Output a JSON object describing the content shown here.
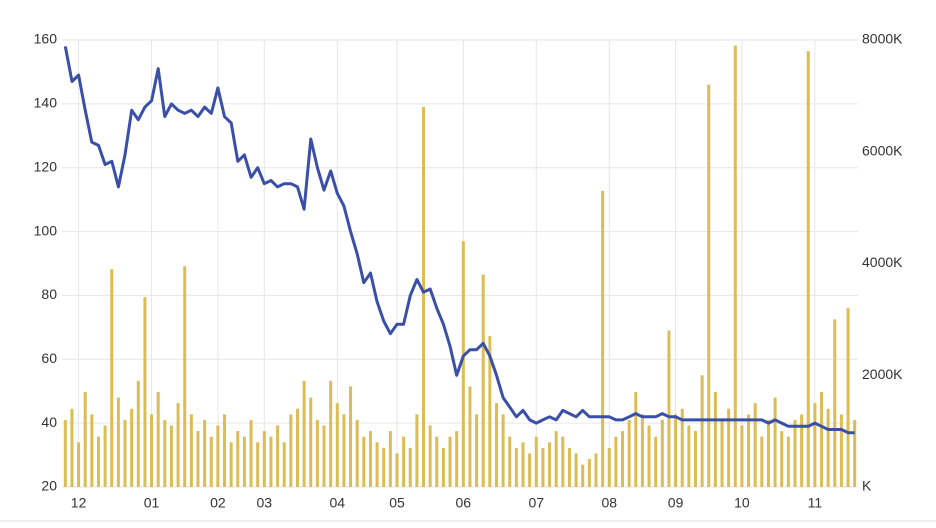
{
  "chart_data": {
    "type": "bar-line",
    "categories": [
      null,
      null,
      "12",
      null,
      null,
      null,
      null,
      null,
      null,
      null,
      null,
      null,
      null,
      "01",
      null,
      null,
      null,
      null,
      null,
      null,
      null,
      null,
      null,
      "02",
      null,
      null,
      null,
      null,
      null,
      null,
      "03",
      null,
      null,
      null,
      null,
      null,
      null,
      null,
      null,
      null,
      null,
      "04",
      null,
      null,
      null,
      null,
      null,
      null,
      null,
      null,
      "05",
      null,
      null,
      null,
      null,
      null,
      null,
      null,
      null,
      null,
      "06",
      null,
      null,
      null,
      null,
      null,
      null,
      null,
      null,
      null,
      null,
      "07",
      null,
      null,
      null,
      null,
      null,
      null,
      null,
      null,
      null,
      null,
      "08",
      null,
      null,
      null,
      null,
      null,
      null,
      null,
      null,
      null,
      "09",
      null,
      null,
      null,
      null,
      null,
      null,
      null,
      null,
      null,
      "10",
      null,
      null,
      null,
      null,
      null,
      null,
      null,
      null,
      null,
      null,
      "11",
      null,
      null,
      null,
      null,
      null,
      null
    ],
    "series": [
      {
        "type": "line",
        "color": "#3a4fa8",
        "values": [
          158,
          147,
          149,
          138,
          128,
          127,
          121,
          122,
          114,
          124,
          138,
          135,
          139,
          141,
          151,
          136,
          140,
          138,
          137,
          138,
          136,
          139,
          137,
          145,
          136,
          134,
          122,
          124,
          117,
          120,
          115,
          116,
          114,
          115,
          115,
          114,
          107,
          129,
          120,
          113,
          119,
          112,
          108,
          100,
          93,
          84,
          87,
          78,
          72,
          68,
          71,
          71,
          80,
          85,
          81,
          82,
          76,
          71,
          64,
          55,
          61,
          63,
          63,
          65,
          61,
          55,
          48,
          45,
          42,
          44,
          41,
          40,
          41,
          42,
          41,
          44,
          43,
          42,
          44,
          42,
          42,
          42,
          42,
          41,
          41,
          42,
          43,
          42,
          42,
          42,
          43,
          42,
          42,
          41,
          41,
          41,
          41,
          41,
          41,
          41,
          41,
          41,
          41,
          41,
          41,
          41,
          40,
          41,
          40,
          39,
          39,
          39,
          39,
          40,
          39,
          38,
          38,
          38,
          37,
          37
        ]
      },
      {
        "type": "bar",
        "axis": "y2",
        "color": "#dcbc55",
        "values": [
          1200,
          1400,
          800,
          1700,
          1300,
          900,
          1100,
          3900,
          1600,
          1200,
          1400,
          1900,
          3400,
          1300,
          1700,
          1200,
          1100,
          1500,
          3950,
          1300,
          1000,
          1200,
          900,
          1100,
          1300,
          800,
          1000,
          900,
          1200,
          800,
          1000,
          900,
          1100,
          800,
          1300,
          1400,
          1900,
          1600,
          1200,
          1100,
          1900,
          1500,
          1300,
          1800,
          1200,
          900,
          1000,
          800,
          700,
          1000,
          600,
          900,
          700,
          1300,
          6800,
          1100,
          900,
          700,
          900,
          1000,
          4400,
          1800,
          1300,
          3800,
          2700,
          1500,
          1300,
          900,
          700,
          800,
          600,
          900,
          700,
          800,
          1000,
          900,
          700,
          600,
          400,
          500,
          600,
          5300,
          700,
          900,
          1000,
          1200,
          1700,
          1300,
          1100,
          900,
          1200,
          2800,
          1300,
          1400,
          1100,
          1000,
          2000,
          7200,
          1700,
          1200,
          1400,
          7900,
          1100,
          1300,
          1500,
          900,
          1200,
          1600,
          1000,
          900,
          1200,
          1300,
          7800,
          1500,
          1700,
          1400,
          3000,
          1300,
          3200,
          1200
        ]
      }
    ],
    "ylim": [
      20,
      160
    ],
    "yticks": [
      20,
      40,
      60,
      80,
      100,
      120,
      140,
      160
    ],
    "y2lim": [
      0,
      8000
    ],
    "y2ticks": [
      {
        "value": 0,
        "label": "K"
      },
      {
        "value": 2000,
        "label": "2000K"
      },
      {
        "value": 4000,
        "label": "4000K"
      },
      {
        "value": 6000,
        "label": "6000K"
      },
      {
        "value": 8000,
        "label": "8000K"
      }
    ],
    "grid": true
  }
}
